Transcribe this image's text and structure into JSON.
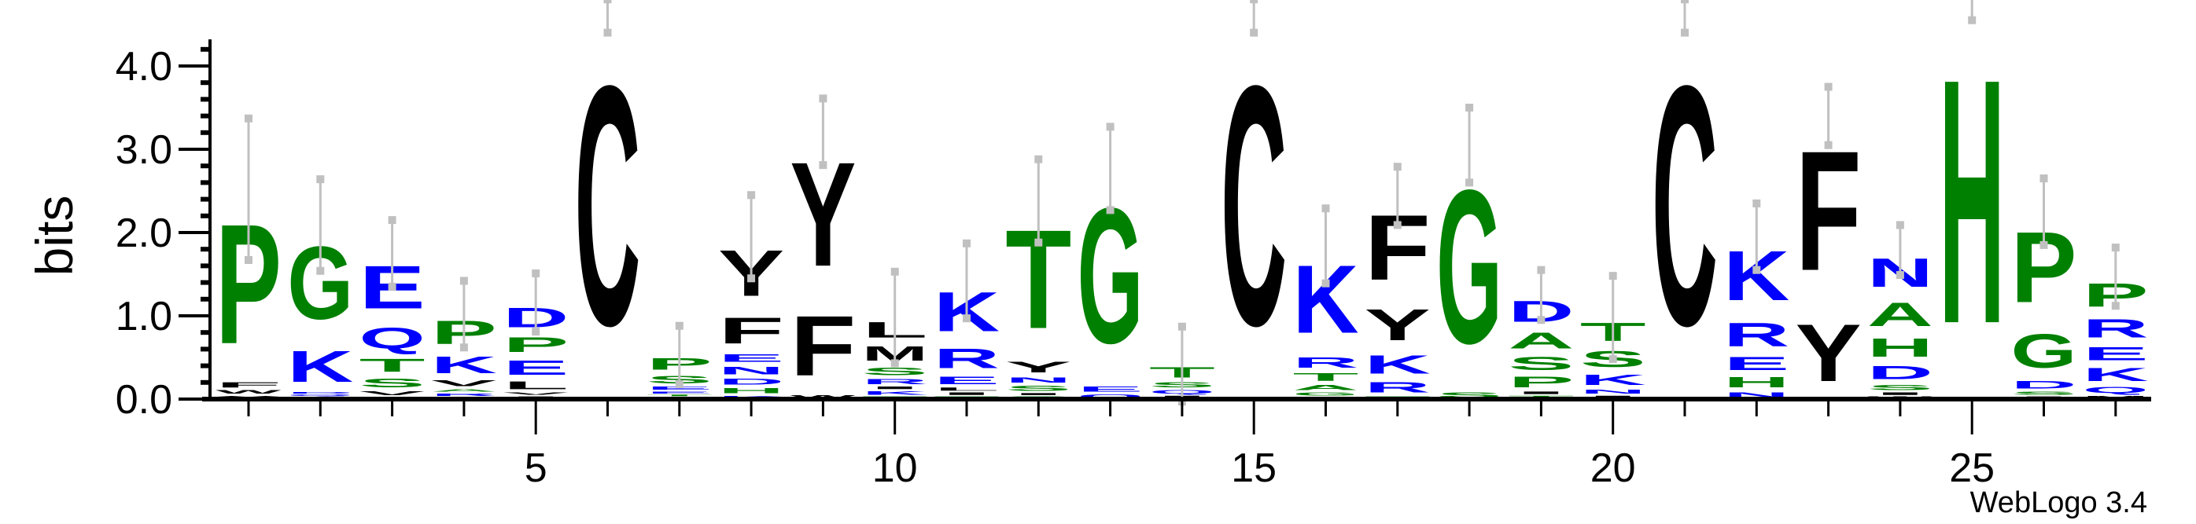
{
  "chart_data": {
    "type": "sequence-logo",
    "ylabel": "bits",
    "ylim": [
      0,
      4.32
    ],
    "yticks": [
      "0.0",
      "1.0",
      "2.0",
      "3.0",
      "4.0"
    ],
    "xticks": [
      "5",
      "10",
      "15",
      "20",
      "25"
    ],
    "credit": "WebLogo 3.4",
    "colors": {
      "A": "#008000",
      "C": "#000000",
      "D": "#0000ff",
      "E": "#0000ff",
      "F": "#000000",
      "G": "#008000",
      "H": "#008000",
      "I": "#000000",
      "K": "#0000ff",
      "L": "#000000",
      "M": "#000000",
      "N": "#0000ff",
      "P": "#008000",
      "Q": "#0000ff",
      "R": "#0000ff",
      "S": "#008000",
      "T": "#008000",
      "V": "#000000",
      "W": "#000000",
      "Y": "#000000"
    },
    "error_bar_color": "#c0c0c0",
    "positions": [
      {
        "pos": 1,
        "stack": [
          [
            "Y",
            0.05
          ],
          [
            "W",
            0.07
          ],
          [
            "F",
            0.1
          ],
          [
            "P",
            2.3
          ]
        ],
        "error": 0.85
      },
      {
        "pos": 2,
        "stack": [
          [
            "R",
            0.03
          ],
          [
            "Q",
            0.03
          ],
          [
            "D",
            0.03
          ],
          [
            "K",
            0.6
          ],
          [
            "G",
            1.4
          ]
        ],
        "error": 0.55
      },
      {
        "pos": 3,
        "stack": [
          [
            "E",
            0.03
          ],
          [
            "V",
            0.08
          ],
          [
            "S",
            0.17
          ],
          [
            "T",
            0.25
          ],
          [
            "Q",
            0.4
          ],
          [
            "E",
            0.82
          ]
        ],
        "error": 0.4
      },
      {
        "pos": 4,
        "stack": [
          [
            "E",
            0.03
          ],
          [
            "R",
            0.05
          ],
          [
            "A",
            0.05
          ],
          [
            "V",
            0.12
          ],
          [
            "K",
            0.32
          ],
          [
            "P",
            0.45
          ]
        ],
        "error": 0.4
      },
      {
        "pos": 5,
        "stack": [
          [
            "I",
            0.04
          ],
          [
            "V",
            0.05
          ],
          [
            "L",
            0.15
          ],
          [
            "E",
            0.27
          ],
          [
            "P",
            0.28
          ],
          [
            "D",
            0.37
          ]
        ],
        "error": 0.35
      },
      {
        "pos": 6,
        "stack": [
          [
            "C",
            4.6
          ]
        ],
        "error": 0.2
      },
      {
        "pos": 7,
        "stack": [
          [
            "D",
            0.03
          ],
          [
            "T",
            0.03
          ],
          [
            "E",
            0.04
          ],
          [
            "E",
            0.06
          ],
          [
            "S",
            0.15
          ],
          [
            "P",
            0.22
          ]
        ],
        "error": 0.35
      },
      {
        "pos": 8,
        "stack": [
          [
            "K",
            0.05
          ],
          [
            "H",
            0.1
          ],
          [
            "D",
            0.12
          ],
          [
            "N",
            0.15
          ],
          [
            "E",
            0.15
          ],
          [
            "F",
            0.5
          ],
          [
            "Y",
            0.88
          ]
        ],
        "error": 0.5
      },
      {
        "pos": 9,
        "stack": [
          [
            "W",
            0.06
          ],
          [
            "F",
            1.15
          ],
          [
            "Y",
            2.0
          ]
        ],
        "error": 0.4
      },
      {
        "pos": 10,
        "stack": [
          [
            "T",
            0.04
          ],
          [
            "K",
            0.07
          ],
          [
            "I",
            0.05
          ],
          [
            "R",
            0.1
          ],
          [
            "S",
            0.15
          ],
          [
            "M",
            0.27
          ],
          [
            "L",
            0.3
          ]
        ],
        "error": 0.55
      },
      {
        "pos": 11,
        "stack": [
          [
            "T",
            0.04
          ],
          [
            "I",
            0.05
          ],
          [
            "L",
            0.06
          ],
          [
            "E",
            0.15
          ],
          [
            "R",
            0.37
          ],
          [
            "K",
            0.75
          ]
        ],
        "error": 0.45
      },
      {
        "pos": 12,
        "stack": [
          [
            "S",
            0.04
          ],
          [
            "I",
            0.04
          ],
          [
            "S",
            0.1
          ],
          [
            "N",
            0.1
          ],
          [
            "Y",
            0.2
          ],
          [
            "T",
            1.9
          ]
        ],
        "error": 0.5
      },
      {
        "pos": 13,
        "stack": [
          [
            "Q",
            0.07
          ],
          [
            "E",
            0.1
          ],
          [
            "G",
            2.6
          ]
        ],
        "error": 0.5
      },
      {
        "pos": 14,
        "stack": [
          [
            "I",
            0.05
          ],
          [
            "Q",
            0.07
          ],
          [
            "S",
            0.1
          ],
          [
            "T",
            0.2
          ]
        ],
        "error": 0.45
      },
      {
        "pos": 15,
        "stack": [
          [
            "C",
            4.6
          ]
        ],
        "error": 0.2
      },
      {
        "pos": 16,
        "stack": [
          [
            "I",
            0.03
          ],
          [
            "G",
            0.06
          ],
          [
            "A",
            0.1
          ],
          [
            "T",
            0.15
          ],
          [
            "R",
            0.2
          ],
          [
            "K",
            1.3
          ]
        ],
        "error": 0.45
      },
      {
        "pos": 17,
        "stack": [
          [
            "T",
            0.04
          ],
          [
            "R",
            0.2
          ],
          [
            "K",
            0.35
          ],
          [
            "Y",
            0.6
          ],
          [
            "F",
            1.25
          ]
        ],
        "error": 0.35
      },
      {
        "pos": 18,
        "stack": [
          [
            "S",
            0.1
          ],
          [
            "G",
            2.95
          ]
        ],
        "error": 0.45
      },
      {
        "pos": 19,
        "stack": [
          [
            "T",
            0.05
          ],
          [
            "I",
            0.05
          ],
          [
            "P",
            0.2
          ],
          [
            "S",
            0.25
          ],
          [
            "A",
            0.3
          ],
          [
            "D",
            0.4
          ]
        ],
        "error": 0.3
      },
      {
        "pos": 20,
        "stack": [
          [
            "I",
            0.05
          ],
          [
            "N",
            0.08
          ],
          [
            "K",
            0.2
          ],
          [
            "S",
            0.3
          ],
          [
            "T",
            0.35
          ]
        ],
        "error": 0.5
      },
      {
        "pos": 21,
        "stack": [
          [
            "C",
            4.6
          ]
        ],
        "error": 0.2
      },
      {
        "pos": 22,
        "stack": [
          [
            "N",
            0.1
          ],
          [
            "H",
            0.2
          ],
          [
            "E",
            0.25
          ],
          [
            "R",
            0.45
          ],
          [
            "K",
            0.95
          ]
        ],
        "error": 0.4
      },
      {
        "pos": 23,
        "stack": [
          [
            "Y",
            1.1
          ],
          [
            "F",
            2.3
          ]
        ],
        "error": 0.35
      },
      {
        "pos": 24,
        "stack": [
          [
            "W",
            0.04
          ],
          [
            "I",
            0.05
          ],
          [
            "S",
            0.1
          ],
          [
            "D",
            0.25
          ],
          [
            "H",
            0.35
          ],
          [
            "A",
            0.45
          ],
          [
            "N",
            0.55
          ]
        ],
        "error": 0.3
      },
      {
        "pos": 25,
        "stack": [
          [
            "H",
            4.7
          ]
        ],
        "error": 0.15
      },
      {
        "pos": 26,
        "stack": [
          [
            "I",
            0.04
          ],
          [
            "S",
            0.06
          ],
          [
            "D",
            0.15
          ],
          [
            "G",
            0.65
          ],
          [
            "P",
            1.35
          ]
        ],
        "error": 0.4
      },
      {
        "pos": 27,
        "stack": [
          [
            "M",
            0.05
          ],
          [
            "Q",
            0.12
          ],
          [
            "K",
            0.25
          ],
          [
            "E",
            0.25
          ],
          [
            "R",
            0.35
          ],
          [
            "P",
            0.45
          ]
        ],
        "error": 0.35
      }
    ]
  }
}
